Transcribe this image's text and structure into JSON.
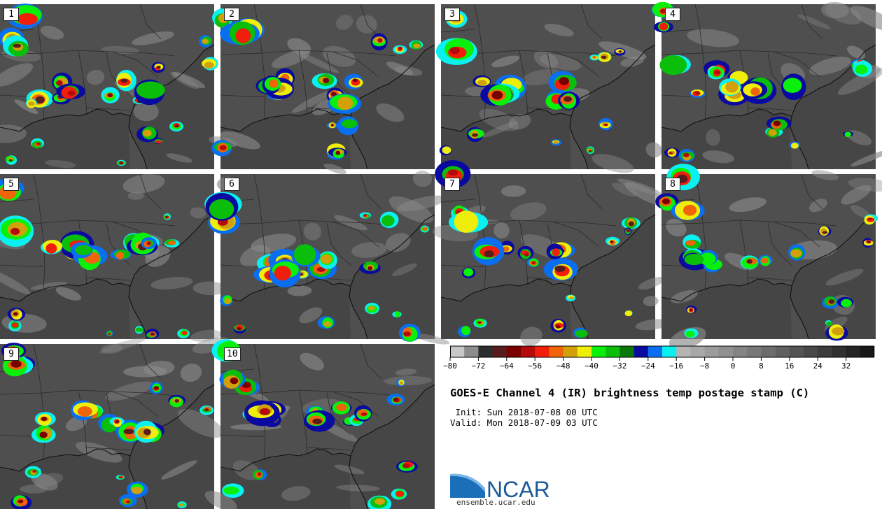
{
  "panels": [
    {
      "label": "1"
    },
    {
      "label": "2"
    },
    {
      "label": "3"
    },
    {
      "label": "4"
    },
    {
      "label": "5"
    },
    {
      "label": "6"
    },
    {
      "label": "7"
    },
    {
      "label": "8"
    },
    {
      "label": "9"
    },
    {
      "label": "10"
    }
  ],
  "colorbar": {
    "colors": [
      "#c8c8c8",
      "#8c8c8c",
      "#2d2d2d",
      "#581c1c",
      "#7a0000",
      "#b40a0a",
      "#f01e0a",
      "#f0640a",
      "#d2a00a",
      "#eeee0a",
      "#0af00a",
      "#0abe0a",
      "#0a780a",
      "#0a0aa0",
      "#0a6ef0",
      "#0af0f0",
      "#b4b4b4",
      "#a8a8a8",
      "#9c9c9c",
      "#909090",
      "#848484",
      "#787878",
      "#6c6c6c",
      "#606060",
      "#545454",
      "#484848",
      "#3c3c3c",
      "#303030",
      "#242424",
      "#181818"
    ],
    "tick_labels": [
      "−80",
      "−72",
      "−64",
      "−56",
      "−48",
      "−40",
      "−32",
      "−24",
      "−16",
      "−8",
      "0",
      "8",
      "16",
      "24",
      "32"
    ]
  },
  "title": "GOES-E Channel 4 (IR) brightness temp postage stamp (C)",
  "init": " Init: Sun 2018-07-08 00 UTC",
  "valid": "Valid: Mon 2018-07-09 03 UTC",
  "logo": {
    "text": "NCAR",
    "url": "ensemble.ucar.edu"
  }
}
